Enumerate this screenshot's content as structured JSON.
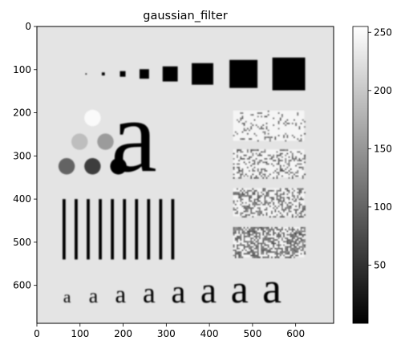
{
  "chart_data": {
    "type": "heatmap",
    "title": "gaussian_filter",
    "colormap": "gray",
    "background_value": 228,
    "x_ticks": [
      0,
      100,
      200,
      300,
      400,
      500,
      600
    ],
    "y_ticks": [
      0,
      100,
      200,
      300,
      400,
      500,
      600
    ],
    "xlim": [
      0,
      688
    ],
    "ylim": [
      688,
      0
    ],
    "colorbar": {
      "ticks": [
        50,
        100,
        150,
        200,
        250
      ],
      "range": [
        0,
        255
      ]
    },
    "squares": [
      {
        "x": 114,
        "y": 110,
        "size": 3,
        "value": 0
      },
      {
        "x": 154,
        "y": 110,
        "size": 7,
        "value": 0
      },
      {
        "x": 199,
        "y": 110,
        "size": 13,
        "value": 0
      },
      {
        "x": 249,
        "y": 110,
        "size": 22,
        "value": 0
      },
      {
        "x": 309,
        "y": 110,
        "size": 35,
        "value": 0
      },
      {
        "x": 384,
        "y": 110,
        "size": 50,
        "value": 0
      },
      {
        "x": 479,
        "y": 110,
        "size": 65,
        "value": 0
      },
      {
        "x": 584,
        "y": 110,
        "size": 76,
        "value": 0
      }
    ],
    "circles": [
      {
        "x": 129,
        "y": 212,
        "r": 19,
        "value": 250
      },
      {
        "x": 99,
        "y": 267,
        "r": 19,
        "value": 190
      },
      {
        "x": 159,
        "y": 267,
        "r": 19,
        "value": 155
      },
      {
        "x": 69,
        "y": 324,
        "r": 19,
        "value": 100
      },
      {
        "x": 129,
        "y": 324,
        "r": 19,
        "value": 60
      },
      {
        "x": 189,
        "y": 324,
        "r": 19,
        "value": 0
      }
    ],
    "bars": [
      {
        "x": 63,
        "y0": 400,
        "y1": 540,
        "width": 7,
        "value": 0
      },
      {
        "x": 91,
        "y0": 400,
        "y1": 540,
        "width": 7,
        "value": 0
      },
      {
        "x": 119,
        "y0": 400,
        "y1": 540,
        "width": 7,
        "value": 0
      },
      {
        "x": 147,
        "y0": 400,
        "y1": 540,
        "width": 7,
        "value": 0
      },
      {
        "x": 175,
        "y0": 400,
        "y1": 540,
        "width": 7,
        "value": 0
      },
      {
        "x": 203,
        "y0": 400,
        "y1": 540,
        "width": 7,
        "value": 0
      },
      {
        "x": 231,
        "y0": 400,
        "y1": 540,
        "width": 7,
        "value": 0
      },
      {
        "x": 259,
        "y0": 400,
        "y1": 540,
        "width": 7,
        "value": 0
      },
      {
        "x": 287,
        "y0": 400,
        "y1": 540,
        "width": 7,
        "value": 0
      },
      {
        "x": 315,
        "y0": 400,
        "y1": 540,
        "width": 7,
        "value": 0
      }
    ],
    "noise_panels": [
      {
        "x0": 455,
        "x1": 620,
        "y0": 195,
        "y1": 265,
        "density": 0.15
      },
      {
        "x0": 455,
        "x1": 620,
        "y0": 285,
        "y1": 350,
        "density": 0.3
      },
      {
        "x0": 455,
        "x1": 620,
        "y0": 375,
        "y1": 440,
        "density": 0.45
      },
      {
        "x0": 455,
        "x1": 620,
        "y0": 465,
        "y1": 535,
        "density": 0.6
      }
    ],
    "big_glyph": {
      "char": "a",
      "x": 225,
      "baseline": 335,
      "size": 240,
      "value": 0
    },
    "small_glyphs": [
      {
        "char": "a",
        "x": 70,
        "baseline": 640,
        "size": 40
      },
      {
        "char": "a",
        "x": 131,
        "baseline": 640,
        "size": 48
      },
      {
        "char": "a",
        "x": 194,
        "baseline": 640,
        "size": 57
      },
      {
        "char": "a",
        "x": 260,
        "baseline": 640,
        "size": 66
      },
      {
        "char": "a",
        "x": 328,
        "baseline": 640,
        "size": 75
      },
      {
        "char": "a",
        "x": 398,
        "baseline": 640,
        "size": 84
      },
      {
        "char": "a",
        "x": 470,
        "baseline": 640,
        "size": 92
      },
      {
        "char": "a",
        "x": 545,
        "baseline": 640,
        "size": 100
      }
    ]
  }
}
